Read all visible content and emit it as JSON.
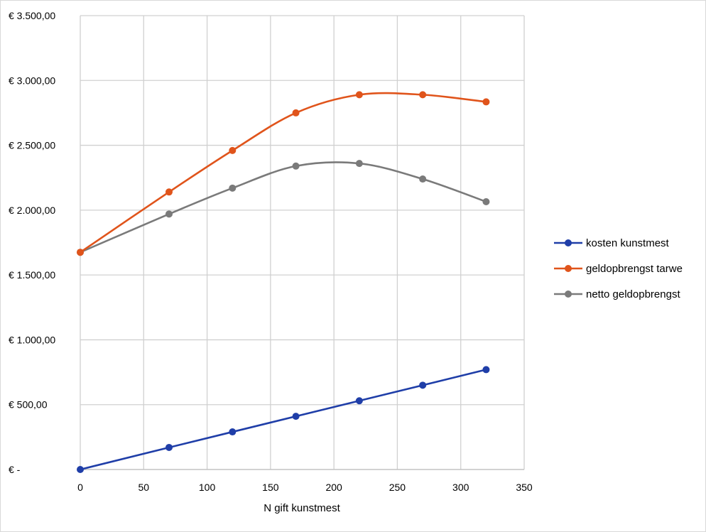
{
  "chart_data": {
    "type": "line",
    "title": "",
    "xlabel": "N gift kunstmest",
    "ylabel": "",
    "xlim": [
      0,
      350
    ],
    "ylim": [
      0,
      3500
    ],
    "x_ticks": [
      0,
      50,
      100,
      150,
      200,
      250,
      300,
      350
    ],
    "x_tick_labels": [
      "0",
      "50",
      "100",
      "150",
      "200",
      "250",
      "300",
      "350"
    ],
    "y_ticks": [
      0,
      500,
      1000,
      1500,
      2000,
      2500,
      3000,
      3500
    ],
    "y_tick_labels": [
      "€ -",
      "€ 500,00",
      "€ 1.000,00",
      "€ 1.500,00",
      "€ 2.000,00",
      "€ 2.500,00",
      "€ 3.000,00",
      "€ 3.500,00"
    ],
    "grid": true,
    "legend_position": "right",
    "x": [
      0,
      70,
      120,
      170,
      220,
      270,
      320
    ],
    "series": [
      {
        "name": "kosten kunstmest",
        "color": "#1f3ea8",
        "smooth": false,
        "values": [
          0,
          170,
          290,
          410,
          530,
          650,
          770
        ]
      },
      {
        "name": "geldopbrengst tarwe",
        "color": "#e0541b",
        "smooth": true,
        "values": [
          1675,
          2140,
          2460,
          2750,
          2890,
          2890,
          2835
        ]
      },
      {
        "name": "netto geldopbrengst",
        "color": "#7a7a7a",
        "smooth": true,
        "values": [
          1675,
          1970,
          2170,
          2340,
          2360,
          2240,
          2065
        ]
      }
    ]
  }
}
